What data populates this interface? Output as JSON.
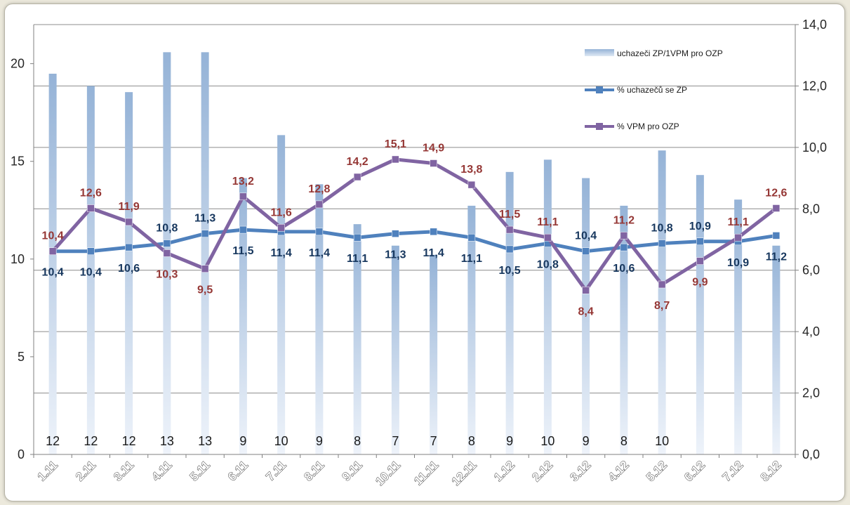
{
  "chart_data": {
    "type": "bar+line",
    "categories": [
      "1.11",
      "2.11",
      "3.11",
      "4.11",
      "5.11",
      "6.11",
      "7.11",
      "8.11",
      "9.11",
      "10.11",
      "11.11",
      "12.11",
      "1.12",
      "2.12",
      "3.12",
      "4.12",
      "5.12",
      "6.12",
      "7.12",
      "8.12"
    ],
    "bar_series": {
      "name": "uchazeči ZP/1VPM pro OZP",
      "axis": "right",
      "values": [
        12.4,
        12.0,
        11.8,
        13.1,
        13.1,
        9.0,
        10.4,
        8.8,
        7.5,
        6.8,
        6.5,
        8.1,
        9.2,
        9.6,
        9.0,
        8.1,
        9.9,
        9.1,
        8.3,
        6.8
      ],
      "labels": [
        "12",
        "12",
        "12",
        "13",
        "13",
        "9",
        "10",
        "9",
        "8",
        "7",
        "7",
        "8",
        "9",
        "10",
        "9",
        "8",
        "10",
        "",
        "",
        ""
      ],
      "color": "#95b3d7"
    },
    "line_series": [
      {
        "name": "% uchazečů se ZP",
        "axis": "left",
        "values": [
          10.4,
          10.4,
          10.6,
          10.8,
          11.3,
          11.5,
          11.4,
          11.4,
          11.1,
          11.3,
          11.4,
          11.1,
          10.5,
          10.8,
          10.4,
          10.6,
          10.8,
          10.9,
          10.9,
          11.2
        ],
        "labels": [
          "10,4",
          "10,4",
          "10,6",
          "10,8",
          "11,3",
          "11,5",
          "11,4",
          "11,4",
          "11,1",
          "11,3",
          "11,4",
          "11,1",
          "10,5",
          "10,8",
          "10,4",
          "10,6",
          "10,8",
          "10,9",
          "10,9",
          "11,2"
        ],
        "color": "#4f81bd",
        "label_color": "#17375e"
      },
      {
        "name": "% VPM pro OZP",
        "axis": "left",
        "values": [
          10.4,
          12.6,
          11.9,
          10.3,
          9.5,
          13.2,
          11.6,
          12.8,
          14.2,
          15.1,
          14.9,
          13.8,
          11.5,
          11.1,
          8.4,
          11.2,
          8.7,
          9.9,
          11.1,
          12.6
        ],
        "labels": [
          "10,4",
          "12,6",
          "11,9",
          "10,3",
          "9,5",
          "13,2",
          "11,6",
          "12,8",
          "14,2",
          "15,1",
          "14,9",
          "13,8",
          "11,5",
          "11,1",
          "8,4",
          "11,2",
          "8,7",
          "9,9",
          "11,1",
          "12,6"
        ],
        "color": "#8064a2",
        "label_color": "#953735"
      }
    ],
    "y_left": {
      "min": 0,
      "max": 22,
      "ticks": [
        "0",
        "5",
        "10",
        "15",
        "20"
      ],
      "tick_values": [
        0,
        5,
        10,
        15,
        20
      ]
    },
    "y_right": {
      "min": 0,
      "max": 14,
      "ticks": [
        "0,0",
        "2,0",
        "4,0",
        "6,0",
        "8,0",
        "10,0",
        "12,0",
        "14,0"
      ],
      "tick_values": [
        0,
        2,
        4,
        6,
        8,
        10,
        12,
        14
      ]
    },
    "legend_position": "top-right",
    "grid": true
  }
}
